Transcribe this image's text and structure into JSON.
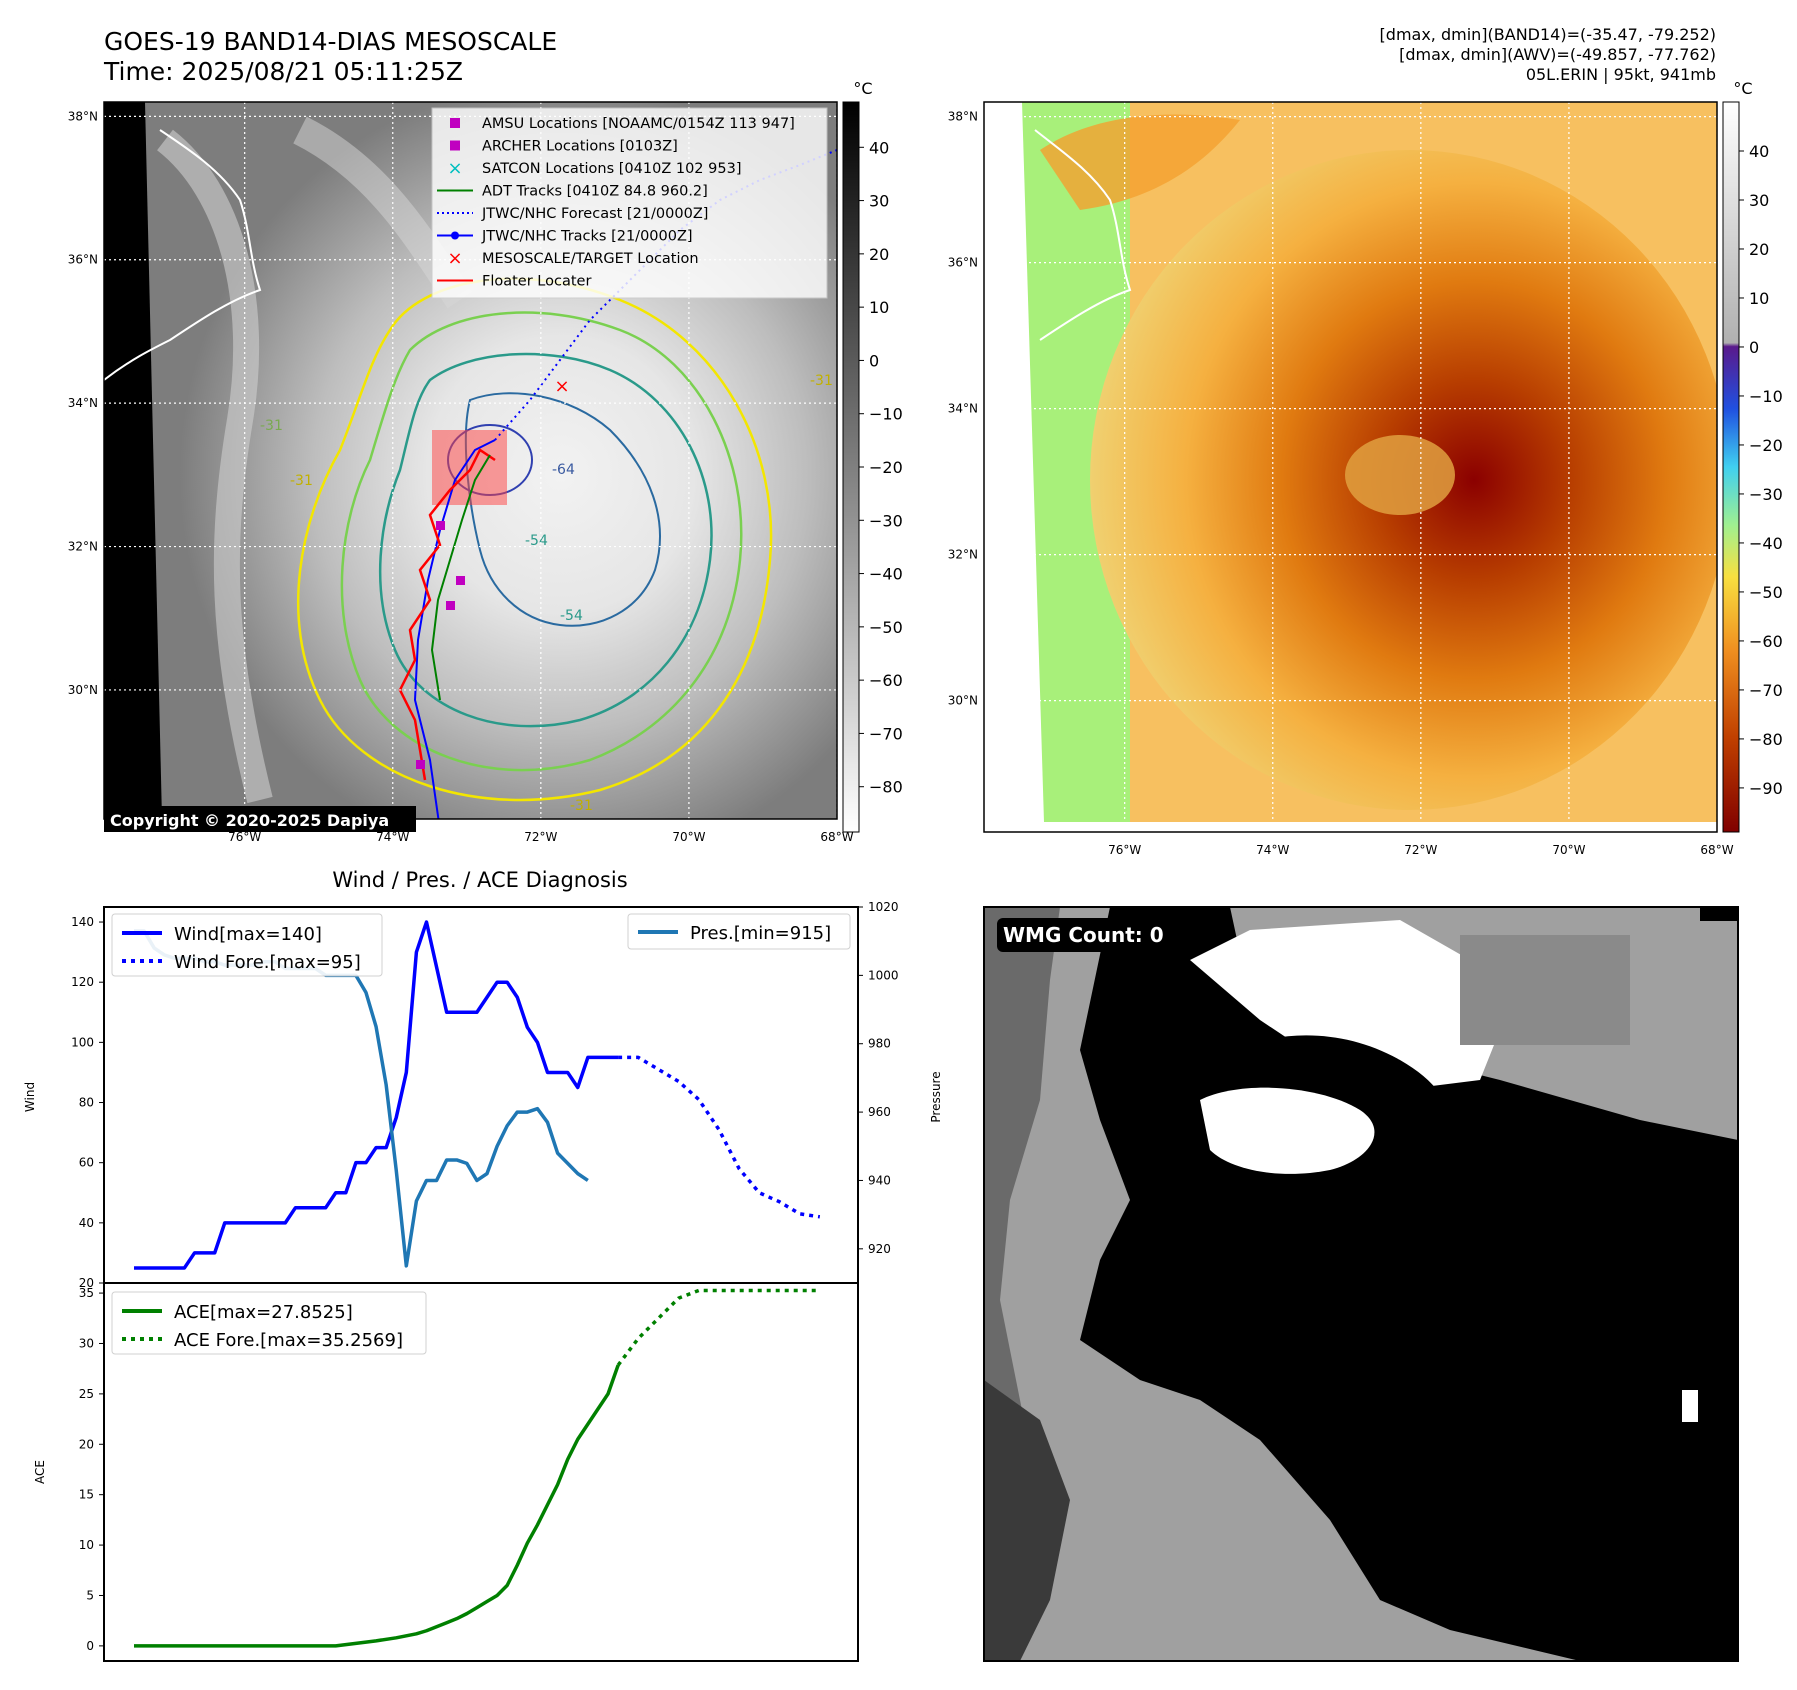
{
  "header": {
    "title_line1": "GOES-19 BAND14-DIAS MESOSCALE",
    "title_line2": "Time: 2025/08/21 05:11:25Z",
    "dinfo_line1": "[dmax, dmin](BAND14)=(-35.47, -79.252)",
    "dinfo_line2": "[dmax, dmin](AWV)=(-49.857, -77.762)",
    "dinfo_line3": "05L.ERIN | 95kt, 941mb"
  },
  "map_axes": {
    "lat_labels": [
      "38°N",
      "36°N",
      "34°N",
      "32°N",
      "30°N"
    ],
    "lon_labels": [
      "76°W",
      "74°W",
      "72°W",
      "70°W",
      "68°W"
    ],
    "lat_values": [
      38,
      36,
      34,
      32,
      30
    ],
    "lon_values": [
      -76,
      -74,
      -72,
      -70,
      -68
    ]
  },
  "ir_panel": {
    "colorbar_unit": "°C",
    "colorbar_ticks": [
      "40",
      "30",
      "20",
      "10",
      "0",
      "−10",
      "−20",
      "−30",
      "−40",
      "−50",
      "−60",
      "−70",
      "−80"
    ],
    "colorbar_values": [
      40,
      30,
      20,
      10,
      0,
      -10,
      -20,
      -30,
      -40,
      -50,
      -60,
      -70,
      -80
    ],
    "copyright": "Copyright © 2020-2025 Dapiya",
    "contour_labels": [
      "-64",
      "-54",
      "-54",
      "-31",
      "-31",
      "-31",
      "-31"
    ],
    "legend": [
      {
        "label": "AMSU Locations [NOAAMC/0154Z 113 947]",
        "marker": "square",
        "color": "#c000c0"
      },
      {
        "label": "ARCHER Locations [0103Z]",
        "marker": "square",
        "color": "#c000c0"
      },
      {
        "label": "SATCON Locations [0410Z 102 953]",
        "marker": "x",
        "color": "#00bfbf"
      },
      {
        "label": "ADT Tracks [0410Z 84.8 960.2]",
        "marker": "line",
        "color": "#008000"
      },
      {
        "label": "JTWC/NHC Forecast [21/0000Z]",
        "marker": "dotted",
        "color": "#0000ff"
      },
      {
        "label": "JTWC/NHC Tracks [21/0000Z]",
        "marker": "line-dot",
        "color": "#0000ff"
      },
      {
        "label": "MESOSCALE/TARGET Location",
        "marker": "x",
        "color": "#ff0000"
      },
      {
        "label": "Floater Locater",
        "marker": "line",
        "color": "#ff0000"
      }
    ]
  },
  "awv_panel": {
    "colorbar_unit": "°C",
    "colorbar_ticks": [
      "40",
      "30",
      "20",
      "10",
      "0",
      "−10",
      "−20",
      "−30",
      "−40",
      "−50",
      "−60",
      "−70",
      "−80",
      "−90"
    ],
    "colorbar_values": [
      40,
      30,
      20,
      10,
      0,
      -10,
      -20,
      -30,
      -40,
      -50,
      -60,
      -70,
      -80,
      -90
    ]
  },
  "wmg_panel": {
    "badge": "WMG Count: 0"
  },
  "chart_data": [
    {
      "type": "line",
      "title": "Wind / Pres. / ACE Diagnosis",
      "ylabel": "Wind",
      "ylabel_right": "Pressure",
      "ylim": [
        20,
        145
      ],
      "ylim_right": [
        910,
        1020
      ],
      "yticks": [
        20,
        40,
        60,
        80,
        100,
        120,
        140
      ],
      "yticks_right": [
        920,
        940,
        960,
        980,
        1000,
        1020
      ],
      "series": [
        {
          "name": "Wind[max=140]",
          "axis": "left",
          "color": "#0000ff",
          "style": "solid",
          "x": [
            0,
            1,
            2,
            3,
            4,
            5,
            6,
            7,
            8,
            9,
            10,
            11,
            12,
            13,
            14,
            15,
            16,
            17,
            18,
            19,
            20,
            21,
            22,
            23,
            24,
            25,
            26,
            27,
            28,
            29,
            30,
            31,
            32,
            33,
            34,
            35,
            36,
            37,
            38,
            39,
            40,
            41,
            42,
            43,
            44,
            45,
            46,
            47,
            48
          ],
          "values": [
            25,
            25,
            25,
            25,
            25,
            25,
            30,
            30,
            30,
            40,
            40,
            40,
            40,
            40,
            40,
            40,
            45,
            45,
            45,
            45,
            50,
            50,
            60,
            60,
            65,
            65,
            75,
            90,
            130,
            140,
            125,
            110,
            110,
            110,
            110,
            115,
            120,
            120,
            115,
            105,
            100,
            90,
            90,
            90,
            85,
            95,
            95,
            95,
            95
          ]
        },
        {
          "name": "Wind Fore.[max=95]",
          "axis": "left",
          "color": "#0000ff",
          "style": "dotted",
          "x": [
            48,
            50,
            52,
            54,
            56,
            58,
            60,
            62,
            64,
            66,
            68
          ],
          "values": [
            95,
            95,
            91,
            87,
            81,
            71,
            58,
            50,
            47,
            43,
            42
          ]
        },
        {
          "name": "Pres.[min=915]",
          "axis": "right",
          "color": "#1f77b4",
          "style": "solid",
          "x": [
            0,
            1,
            2,
            3,
            4,
            5,
            6,
            7,
            8,
            9,
            10,
            11,
            12,
            13,
            14,
            15,
            16,
            17,
            18,
            19,
            20,
            21,
            22,
            23,
            24,
            25,
            26,
            27,
            28,
            29,
            30,
            31,
            32,
            33,
            34,
            35,
            36,
            37,
            38,
            39,
            40,
            41,
            42,
            43,
            44,
            45
          ],
          "values": [
            1013,
            1013,
            1008,
            1006,
            1005,
            1005,
            1005,
            1004,
            1004,
            1003,
            1003,
            1003,
            1003,
            1004,
            1004,
            1002,
            1002,
            1002,
            1002,
            1000,
            1000,
            1000,
            1000,
            995,
            985,
            968,
            943,
            915,
            934,
            940,
            940,
            946,
            946,
            945,
            940,
            942,
            950,
            956,
            960,
            960,
            961,
            957,
            948,
            945,
            942,
            940
          ]
        }
      ]
    },
    {
      "type": "line",
      "ylabel": "ACE",
      "ylim": [
        -1.5,
        36
      ],
      "yticks": [
        0,
        5,
        10,
        15,
        20,
        25,
        30,
        35
      ],
      "series": [
        {
          "name": "ACE[max=27.8525]",
          "color": "#008000",
          "style": "solid",
          "x": [
            0,
            4,
            8,
            12,
            16,
            20,
            24,
            26,
            27,
            28,
            29,
            30,
            31,
            32,
            33,
            34,
            35,
            36,
            37,
            38,
            39,
            40,
            41,
            42,
            43,
            44,
            45,
            46,
            47,
            48
          ],
          "values": [
            0,
            0,
            0,
            0,
            0,
            0,
            0.5,
            0.8,
            1.0,
            1.2,
            1.5,
            1.9,
            2.3,
            2.7,
            3.2,
            3.8,
            4.4,
            5.0,
            6.0,
            8.0,
            10.2,
            12.0,
            14.0,
            16.0,
            18.5,
            20.5,
            22.0,
            23.5,
            25.0,
            27.85
          ]
        },
        {
          "name": "ACE Fore.[max=35.2569]",
          "color": "#008000",
          "style": "dotted",
          "x": [
            48,
            50,
            52,
            54,
            56,
            58,
            60,
            62,
            64,
            66,
            68
          ],
          "values": [
            27.85,
            30.5,
            32.5,
            34.5,
            35.26,
            35.26,
            35.26,
            35.26,
            35.26,
            35.26,
            35.26
          ]
        }
      ]
    }
  ]
}
